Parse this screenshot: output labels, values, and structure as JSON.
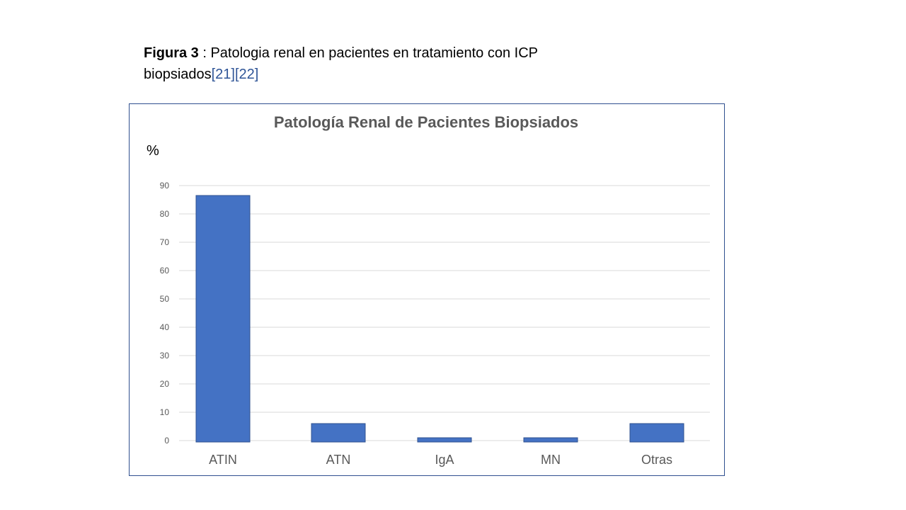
{
  "caption": {
    "label": "Figura  3",
    "separator": " : ",
    "text_line1": "Patologia renal en pacientes en tratamiento con ICP",
    "text_line2": "biopsiados",
    "refs": "[21][22]"
  },
  "chart_data": {
    "type": "bar",
    "title": "Patología Renal de Pacientes Biopsiados",
    "ylabel": "%",
    "xlabel": "",
    "ylim": [
      0,
      90
    ],
    "yticks": [
      0,
      10,
      20,
      30,
      40,
      50,
      60,
      70,
      80,
      90
    ],
    "categories": [
      "ATIN",
      "ATN",
      "IgA",
      "MN",
      "Otras"
    ],
    "values": [
      86.5,
      6,
      1,
      1,
      6
    ],
    "grid": true,
    "legend": "none",
    "bar_color": "#4472c4",
    "bar_edge_color": "#2f528f"
  }
}
